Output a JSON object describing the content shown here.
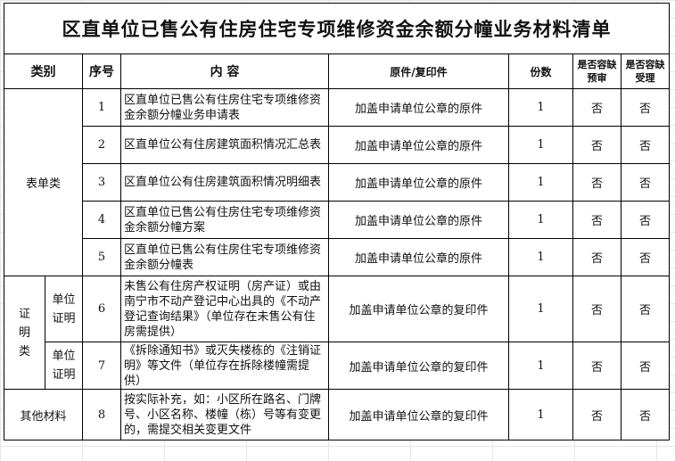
{
  "title": "区直单位已售公有住房住宅专项维修资金余额分幢业务材料清单",
  "headers": {
    "category": "类别",
    "seq": "序号",
    "content": "内 容",
    "type": "原件/复印件",
    "copies": "份数",
    "pre_review": "是否容缺预审",
    "accept": "是否容缺受理"
  },
  "groups": {
    "form": "表单类",
    "proof": "证明类",
    "proof_sub": "单位证明",
    "other": "其他材料"
  },
  "rows": [
    {
      "seq": "1",
      "content": "区直单位已售公有住房住宅专项维修资金余额分幢业务申请表",
      "type": "加盖申请单位公章的原件",
      "copies": "1",
      "pre_review": "否",
      "accept": "否"
    },
    {
      "seq": "2",
      "content": "区直单位公有住房建筑面积情况汇总表",
      "type": "加盖申请单位公章的原件",
      "copies": "1",
      "pre_review": "否",
      "accept": "否"
    },
    {
      "seq": "3",
      "content": "区直单位公有住房建筑面积情况明细表",
      "type": "加盖申请单位公章的原件",
      "copies": "1",
      "pre_review": "否",
      "accept": "否"
    },
    {
      "seq": "4",
      "content": "区直单位已售公有住房住宅专项维修资金余额分幢方案",
      "type": "加盖申请单位公章的原件",
      "copies": "1",
      "pre_review": "否",
      "accept": "否"
    },
    {
      "seq": "5",
      "content": "区直单位已售公有住房住宅专项维修资金余额分幢表",
      "type": "加盖申请单位公章的原件",
      "copies": "1",
      "pre_review": "否",
      "accept": "否"
    },
    {
      "seq": "6",
      "content": "未售公有住房产权证明（房产证）或由南宁市不动产登记中心出具的《不动产登记查询结果》（单位存在未售公有住房需提供）",
      "type": "加盖申请单位公章的复印件",
      "copies": "1",
      "pre_review": "否",
      "accept": "否"
    },
    {
      "seq": "7",
      "content": "《拆除通知书》或灭失楼栋的《注销证明》等文件（单位存在拆除楼幢需提供）",
      "type": "加盖申请单位公章的复印件",
      "copies": "1",
      "pre_review": "否",
      "accept": "否"
    },
    {
      "seq": "8",
      "content": "按实际补充，如：小区所在路名、门牌号、小区名称、楼幢（栋）号等有变更的，需提交相关变更文件",
      "type": "加盖申请单位公章的复印件",
      "copies": "1",
      "pre_review": "否",
      "accept": "否"
    }
  ]
}
